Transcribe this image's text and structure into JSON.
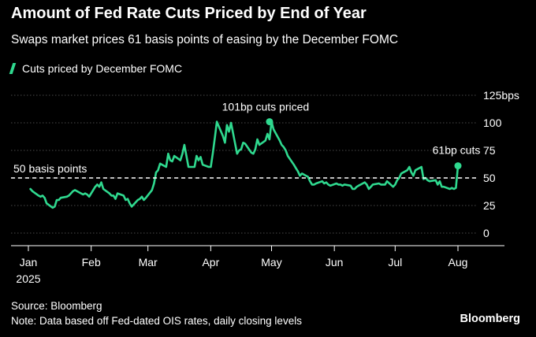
{
  "title": "Amount of Fed Rate Cuts Priced by End of Year",
  "subtitle": "Swaps market prices 61 basis points of easing by the December FOMC",
  "source": "Source: Bloomberg",
  "note": "Note: Data based off Fed-dated OIS rates, daily closing levels",
  "brand": "Bloomberg",
  "colors": {
    "line": "#2fd98f",
    "background": "#000000",
    "grid": "#4a4a4a"
  },
  "chart_data": {
    "type": "line",
    "series": [
      {
        "name": "Cuts priced by December FOMC",
        "x": [
          "2025-01-02",
          "2025-01-03",
          "2025-01-06",
          "2025-01-07",
          "2025-01-08",
          "2025-01-09",
          "2025-01-10",
          "2025-01-13",
          "2025-01-14",
          "2025-01-15",
          "2025-01-16",
          "2025-01-17",
          "2025-01-20",
          "2025-01-21",
          "2025-01-22",
          "2025-01-23",
          "2025-01-24",
          "2025-01-27",
          "2025-01-28",
          "2025-01-29",
          "2025-01-30",
          "2025-01-31",
          "2025-02-03",
          "2025-02-04",
          "2025-02-05",
          "2025-02-06",
          "2025-02-07",
          "2025-02-10",
          "2025-02-11",
          "2025-02-12",
          "2025-02-13",
          "2025-02-14",
          "2025-02-17",
          "2025-02-18",
          "2025-02-19",
          "2025-02-20",
          "2025-02-21",
          "2025-02-24",
          "2025-02-25",
          "2025-02-26",
          "2025-02-27",
          "2025-02-28",
          "2025-03-03",
          "2025-03-04",
          "2025-03-05",
          "2025-03-06",
          "2025-03-07",
          "2025-03-10",
          "2025-03-11",
          "2025-03-12",
          "2025-03-13",
          "2025-03-14",
          "2025-03-17",
          "2025-03-18",
          "2025-03-19",
          "2025-03-20",
          "2025-03-21",
          "2025-03-24",
          "2025-03-25",
          "2025-03-26",
          "2025-03-27",
          "2025-03-28",
          "2025-03-31",
          "2025-04-01",
          "2025-04-02",
          "2025-04-03",
          "2025-04-04",
          "2025-04-07",
          "2025-04-08",
          "2025-04-09",
          "2025-04-10",
          "2025-04-11",
          "2025-04-14",
          "2025-04-15",
          "2025-04-16",
          "2025-04-17",
          "2025-04-18",
          "2025-04-21",
          "2025-04-22",
          "2025-04-23",
          "2025-04-24",
          "2025-04-25",
          "2025-04-28",
          "2025-04-29",
          "2025-04-30",
          "2025-05-01",
          "2025-05-02",
          "2025-05-05",
          "2025-05-06",
          "2025-05-07",
          "2025-05-08",
          "2025-05-09",
          "2025-05-12",
          "2025-05-13",
          "2025-05-14",
          "2025-05-15",
          "2025-05-16",
          "2025-05-19",
          "2025-05-20",
          "2025-05-21",
          "2025-05-22",
          "2025-05-23",
          "2025-05-26",
          "2025-05-27",
          "2025-05-28",
          "2025-05-29",
          "2025-05-30",
          "2025-06-02",
          "2025-06-03",
          "2025-06-04",
          "2025-06-05",
          "2025-06-06",
          "2025-06-09",
          "2025-06-10",
          "2025-06-11",
          "2025-06-12",
          "2025-06-13",
          "2025-06-16",
          "2025-06-17",
          "2025-06-18",
          "2025-06-19",
          "2025-06-20",
          "2025-06-23",
          "2025-06-24",
          "2025-06-25",
          "2025-06-26",
          "2025-06-27",
          "2025-06-30",
          "2025-07-01",
          "2025-07-02",
          "2025-07-03",
          "2025-07-04",
          "2025-07-07",
          "2025-07-08",
          "2025-07-09",
          "2025-07-10",
          "2025-07-11",
          "2025-07-14",
          "2025-07-15",
          "2025-07-16",
          "2025-07-17",
          "2025-07-18",
          "2025-07-21",
          "2025-07-22",
          "2025-07-23",
          "2025-07-24",
          "2025-07-25",
          "2025-07-28",
          "2025-07-29",
          "2025-07-30",
          "2025-07-31",
          "2025-08-01"
        ],
        "values": [
          40,
          38,
          34,
          33,
          34,
          32,
          27,
          23,
          24,
          30,
          30,
          32,
          33,
          34,
          36,
          38,
          39,
          36,
          35,
          36,
          35,
          33,
          42,
          44,
          42,
          46,
          40,
          36,
          34,
          34,
          31,
          36,
          34,
          30,
          31,
          27,
          24,
          30,
          31,
          33,
          30,
          32,
          39,
          45,
          55,
          57,
          63,
          60,
          72,
          66,
          65,
          70,
          66,
          72,
          80,
          70,
          60,
          60,
          70,
          66,
          69,
          62,
          60,
          60,
          72,
          86,
          101,
          88,
          82,
          98,
          92,
          100,
          72,
          75,
          76,
          82,
          81,
          73,
          72,
          76,
          85,
          80,
          84,
          90,
          85,
          101,
          94,
          84,
          80,
          78,
          75,
          70,
          62,
          59,
          56,
          52,
          54,
          51,
          47,
          44,
          44,
          45,
          47,
          45,
          46,
          44,
          43,
          45,
          44,
          44,
          43,
          44,
          43,
          40,
          40,
          42,
          43,
          46,
          44,
          40,
          42,
          44,
          45,
          44,
          44,
          44,
          47,
          42,
          44,
          48,
          50,
          54,
          57,
          60,
          55,
          52,
          57,
          60,
          49,
          50,
          48,
          47,
          48,
          44,
          47,
          42,
          42,
          40,
          41,
          40,
          41,
          61
        ]
      }
    ],
    "xlim": [
      "2025-01-01",
      "2025-08-31"
    ],
    "ylim": [
      0,
      125
    ],
    "yticks": [
      0,
      25,
      50,
      75,
      100,
      125
    ],
    "ytick_labels": [
      "0",
      "25",
      "50",
      "75",
      "100",
      "125bps"
    ],
    "xticks": [
      "2025-01-01",
      "2025-02-01",
      "2025-03-01",
      "2025-04-01",
      "2025-05-01",
      "2025-06-01",
      "2025-07-01",
      "2025-08-01"
    ],
    "xtick_labels": [
      "Jan",
      "Feb",
      "Mar",
      "Apr",
      "May",
      "Jun",
      "Jul",
      "Aug"
    ],
    "xtick_year_label": "2025",
    "reference_line": {
      "value": 50,
      "label": "50 basis points",
      "style": "dashed"
    },
    "annotations": [
      {
        "x": "2025-04-30",
        "y": 101,
        "text": "101bp cuts priced"
      },
      {
        "x": "2025-08-01",
        "y": 61,
        "text": "61bp cuts"
      }
    ],
    "grid": "horizontal",
    "legend": "top-left"
  }
}
